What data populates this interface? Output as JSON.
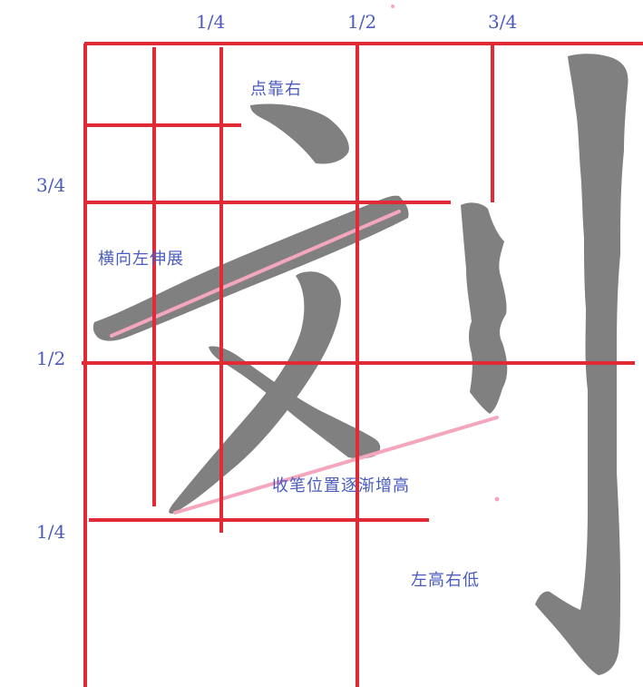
{
  "axis_labels": {
    "top_quarter": "1/4",
    "top_half": "1/2",
    "top_three_quarter": "3/4",
    "left_three_quarter": "3/4",
    "left_half": "1/2",
    "left_quarter": "1/4"
  },
  "annotations": {
    "dot_right": "点靠右",
    "horizontal_extend": "横向左伸展",
    "ending_rise": "收笔位置逐渐增高",
    "left_high_right_low": "左高右低"
  },
  "colors": {
    "grid": "#e02a35",
    "guide": "#f4a6bd",
    "stroke": "#808080",
    "label": "#4a5bbf"
  }
}
